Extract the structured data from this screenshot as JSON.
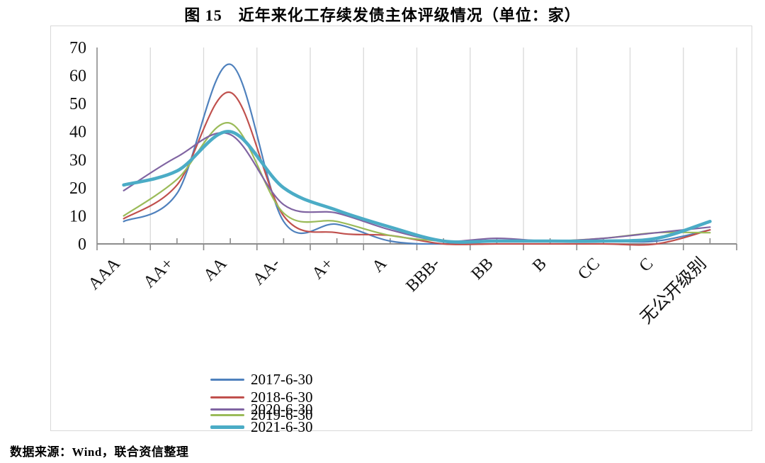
{
  "page": {
    "title": "图 15　近年来化工存续发债主体评级情况（单位：家）",
    "source_note": "数据来源：Wind，联合资信整理"
  },
  "chart_data": {
    "type": "line",
    "smooth": true,
    "title": "图 15 近年来化工存续发债主体评级情况（单位：家）",
    "xlabel": "",
    "ylabel": "",
    "ylim": [
      0,
      70
    ],
    "yticks": [
      0,
      10,
      20,
      30,
      40,
      50,
      60,
      70
    ],
    "grid": "vertical-only",
    "legend_position": "bottom",
    "categories": [
      "AAA",
      "AA+",
      "AA",
      "AA-",
      "A+",
      "A",
      "BBB-",
      "BB",
      "B",
      "CC",
      "C",
      "无公开级别"
    ],
    "series": [
      {
        "name": "2017-6-30",
        "color": "#4F81BD",
        "line_width": 2.2,
        "values": [
          8,
          18,
          64,
          8,
          7,
          1,
          0,
          1,
          1,
          1,
          1,
          5
        ]
      },
      {
        "name": "2018-6-30",
        "color": "#C0504D",
        "line_width": 2.2,
        "values": [
          9,
          21,
          54,
          10,
          4,
          3,
          0,
          0,
          0,
          0,
          0,
          5
        ]
      },
      {
        "name": "2019-6-30",
        "color": "#9BBB59",
        "line_width": 2.2,
        "values": [
          10,
          23,
          43,
          11,
          8,
          3,
          1,
          1,
          1,
          2,
          4,
          4
        ]
      },
      {
        "name": "2020-6-30",
        "color": "#8064A2",
        "line_width": 2.2,
        "values": [
          19,
          31,
          39,
          14,
          11,
          5,
          1,
          2,
          1,
          2,
          4,
          6
        ]
      },
      {
        "name": "2021-6-30",
        "color": "#4BACC6",
        "line_width": 4.6,
        "values": [
          21,
          26,
          40,
          20,
          12,
          6,
          1,
          1,
          1,
          1,
          2,
          8
        ]
      }
    ],
    "colors": {
      "gridline": "#d9d9d9",
      "axis": "#8c8c8c",
      "text": "#111111",
      "frame_border": "#d8d8d8"
    }
  }
}
